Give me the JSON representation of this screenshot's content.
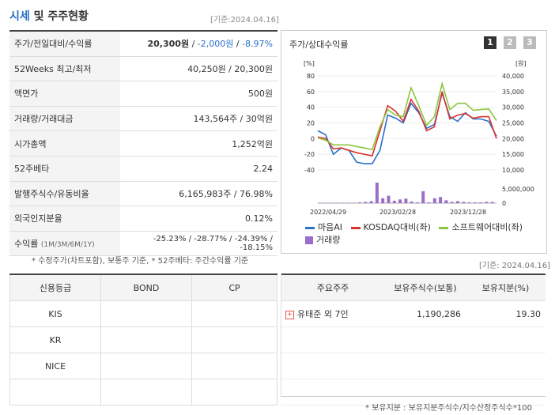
{
  "header": {
    "title_hl": "시세",
    "title_rest": " 및 주주현황",
    "date": "[기준:2024.04.16]"
  },
  "quote_rows": [
    {
      "label": "주가/전일대비/수익률",
      "v1": "20,300원",
      "v2": "-2,000원",
      "v3": "-8.97%"
    },
    {
      "label": "52Weeks 최고/최저",
      "value": "40,250원 / 20,300원"
    },
    {
      "label": "액면가",
      "value": "500원"
    },
    {
      "label": "거래량/거래대금",
      "value": "143,564주 / 30억원"
    },
    {
      "label": "시가총액",
      "value": "1,252억원"
    },
    {
      "label": "52주베타",
      "value": "2.24"
    },
    {
      "label": "발행주식수/유동비율",
      "value": "6,165,983주 / 76.98%"
    },
    {
      "label": "외국인지분율",
      "value": "0.12%"
    },
    {
      "label": "수익률",
      "sub": "(1M/3M/6M/1Y)",
      "value": "-25.23% / -28.77% / -24.39% / -18.15%"
    }
  ],
  "note1": "* 수정주가(차트포함), 보통주 기준, * 52주베타: 주간수익률 기준",
  "chart_panel": {
    "title": "주가/상대수익률",
    "tabs": [
      "1",
      "2",
      "3"
    ]
  },
  "chart_data": {
    "type": "line",
    "left_axis": {
      "unit": "[%]",
      "ticks": [
        "80",
        "60",
        "40",
        "20",
        "0",
        "-20",
        "-40"
      ]
    },
    "right_axis": {
      "unit": "[원]",
      "ticks": [
        "40,000",
        "35,000",
        "30,000",
        "25,000",
        "20,000",
        "15,000",
        "10,000"
      ]
    },
    "volume_axis": {
      "ticks": [
        "5,000,000",
        "0"
      ]
    },
    "x_labels": [
      "2022/04/29",
      "2023/02/28",
      "2023/12/28"
    ],
    "series": [
      {
        "name": "마음AI",
        "color": "#2a6fc9",
        "values": [
          10,
          5,
          -20,
          -12,
          -15,
          -30,
          -32,
          -32,
          -15,
          30,
          26,
          20,
          45,
          33,
          13,
          18,
          58,
          28,
          22,
          33,
          25,
          25,
          22,
          3
        ]
      },
      {
        "name": "KOSDAQ대비(좌)",
        "color": "#d9342b",
        "values": [
          2,
          0,
          -13,
          -12,
          -15,
          -18,
          -20,
          -22,
          10,
          42,
          35,
          22,
          50,
          35,
          10,
          15,
          60,
          25,
          30,
          32,
          26,
          28,
          28,
          0
        ]
      },
      {
        "name": "소프트웨어대비(좌)",
        "color": "#8cc63f",
        "values": [
          1,
          -2,
          -8,
          -8,
          -8,
          -10,
          -12,
          -14,
          15,
          37,
          30,
          28,
          65,
          42,
          17,
          28,
          70,
          37,
          45,
          45,
          36,
          37,
          38,
          23
        ]
      }
    ],
    "volume_legend": "거래량",
    "volume_color": "#9b6fc9",
    "volume": [
      0.1,
      0.1,
      0.1,
      0.1,
      0.1,
      0.1,
      0.1,
      0.2,
      0.3,
      0.5,
      5.0,
      1.2,
      1.8,
      0.6,
      0.9,
      1.1,
      0.4,
      0.2,
      2.9,
      0.2,
      1.2,
      1.5,
      0.7,
      0.3,
      0.5,
      0.3,
      0.2,
      0.2,
      0.2,
      0.3,
      0.3
    ]
  },
  "date2": "[기준: 2024.04.16]",
  "credit": {
    "headers": [
      "신용등급",
      "BOND",
      "CP"
    ],
    "rows": [
      [
        "KIS",
        "",
        ""
      ],
      [
        "KR",
        "",
        ""
      ],
      [
        "NICE",
        "",
        ""
      ],
      [
        "",
        "",
        ""
      ]
    ]
  },
  "holders": {
    "headers": [
      "주요주주",
      "보유주식수(보통)",
      "보유지분(%)"
    ],
    "rows": [
      {
        "name": "유태준 외 7인",
        "shares": "1,190,286",
        "pct": "19.30"
      }
    ]
  },
  "note2": "* 보유지분 : 보유지분주식수/지수산정주식수*100"
}
